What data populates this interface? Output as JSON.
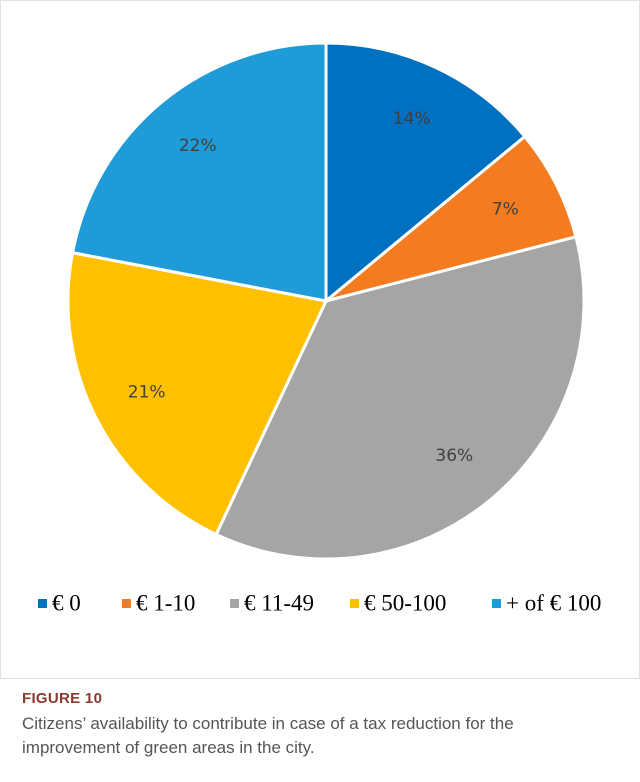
{
  "chart_data": {
    "type": "pie",
    "categories": [
      "€ 0",
      "€ 1-10",
      "€ 11-49",
      "€ 50-100",
      "+ of € 100"
    ],
    "values": [
      14,
      7,
      36,
      21,
      22
    ],
    "value_labels": [
      "14%",
      "7%",
      "36%",
      "21%",
      "22%"
    ],
    "colors": [
      "#0070c0",
      "#f47b20",
      "#a5a5a5",
      "#ffc000",
      "#1f9bd7"
    ],
    "legend": "bottom"
  },
  "figure": {
    "title": "FIGURE 10",
    "caption": "Citizens’ availability to contribute in case of a tax reduction for the improvement of green areas in the city."
  }
}
